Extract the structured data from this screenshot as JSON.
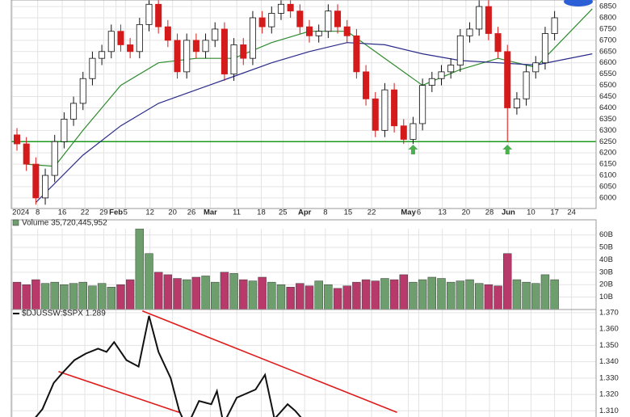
{
  "chart_data": [
    {
      "type": "candlestick",
      "xlim": [
        -0.6,
        61.4
      ],
      "ylim": [
        5953,
        6879
      ],
      "yticks": [
        6000,
        6050,
        6100,
        6150,
        6200,
        6250,
        6300,
        6350,
        6400,
        6450,
        6500,
        6550,
        6600,
        6650,
        6700,
        6750,
        6800,
        6850
      ],
      "xticks": [
        {
          "value": -0.5,
          "label": "2024"
        },
        {
          "value": 2.2,
          "label": "8"
        },
        {
          "value": 4.8,
          "label": "16"
        },
        {
          "value": 7.2,
          "label": "22"
        },
        {
          "value": 9.2,
          "label": "29"
        },
        {
          "value": 10.5,
          "label": "Feb"
        },
        {
          "value": 11.5,
          "label": "5"
        },
        {
          "value": 14.1,
          "label": "12"
        },
        {
          "value": 16.5,
          "label": "20"
        },
        {
          "value": 18.5,
          "label": "26"
        },
        {
          "value": 20.5,
          "label": "Mar"
        },
        {
          "value": 23.3,
          "label": "11"
        },
        {
          "value": 25.9,
          "label": "18"
        },
        {
          "value": 28.2,
          "label": "25"
        },
        {
          "value": 30.5,
          "label": "Apr"
        },
        {
          "value": 32.7,
          "label": "8"
        },
        {
          "value": 35.1,
          "label": "15"
        },
        {
          "value": 37.6,
          "label": "22"
        },
        {
          "value": 41.5,
          "label": "May"
        },
        {
          "value": 42.6,
          "label": "6"
        },
        {
          "value": 45.1,
          "label": "13"
        },
        {
          "value": 47.6,
          "label": "20"
        },
        {
          "value": 50.1,
          "label": "28"
        },
        {
          "value": 52.1,
          "label": "Jun"
        },
        {
          "value": 54.5,
          "label": "10"
        },
        {
          "value": 57.0,
          "label": "17"
        },
        {
          "value": 58.8,
          "label": "24"
        }
      ],
      "grid": true,
      "up_color": "#ffffff",
      "down_color": "#d41a1a",
      "open": [
        6280,
        6240,
        6150,
        6000,
        6100,
        6250,
        6350,
        6420,
        6530,
        6620,
        6650,
        6740,
        6680,
        6650,
        6770,
        6860,
        6760,
        6700,
        6560,
        6700,
        6650,
        6700,
        6750,
        6550,
        6680,
        6620,
        6800,
        6760,
        6820,
        6860,
        6830,
        6760,
        6720,
        6740,
        6830,
        6760,
        6720,
        6560,
        6440,
        6300,
        6480,
        6320,
        6260,
        6330,
        6500,
        6530,
        6560,
        6590,
        6720,
        6750,
        6850,
        6730,
        6650,
        6400,
        6440,
        6560,
        6600,
        6730
      ],
      "high": [
        6310,
        6270,
        6180,
        6130,
        6280,
        6380,
        6450,
        6560,
        6650,
        6680,
        6770,
        6770,
        6710,
        6800,
        6890,
        6890,
        6790,
        6730,
        6730,
        6730,
        6730,
        6780,
        6780,
        6710,
        6710,
        6830,
        6830,
        6850,
        6890,
        6890,
        6860,
        6790,
        6770,
        6860,
        6860,
        6790,
        6750,
        6590,
        6470,
        6510,
        6510,
        6350,
        6360,
        6530,
        6560,
        6590,
        6620,
        6750,
        6780,
        6880,
        6880,
        6760,
        6680,
        6470,
        6590,
        6630,
        6760,
        6830
      ],
      "low": [
        6210,
        6120,
        5970,
        5970,
        6070,
        6220,
        6320,
        6390,
        6500,
        6590,
        6620,
        6650,
        6620,
        6620,
        6740,
        6730,
        6670,
        6530,
        6530,
        6620,
        6620,
        6670,
        6520,
        6520,
        6590,
        6590,
        6730,
        6730,
        6790,
        6800,
        6730,
        6690,
        6690,
        6710,
        6730,
        6690,
        6530,
        6410,
        6270,
        6270,
        6290,
        6240,
        6240,
        6300,
        6470,
        6500,
        6530,
        6560,
        6690,
        6720,
        6700,
        6620,
        6250,
        6370,
        6410,
        6530,
        6570,
        6700
      ],
      "close": [
        6240,
        6150,
        6000,
        6100,
        6250,
        6350,
        6420,
        6530,
        6620,
        6650,
        6740,
        6680,
        6650,
        6770,
        6860,
        6760,
        6700,
        6560,
        6700,
        6650,
        6700,
        6750,
        6550,
        6680,
        6620,
        6800,
        6760,
        6820,
        6860,
        6830,
        6760,
        6720,
        6740,
        6830,
        6760,
        6720,
        6560,
        6440,
        6300,
        6480,
        6320,
        6260,
        6330,
        6500,
        6530,
        6560,
        6590,
        6720,
        6750,
        6850,
        6730,
        6650,
        6400,
        6440,
        6560,
        6600,
        6730,
        6800
      ],
      "series": [
        {
          "color": "#2e8b2e",
          "x": [
            1,
            4,
            7,
            11,
            15,
            19,
            23,
            27,
            31,
            35,
            39,
            43,
            47,
            51,
            55,
            61
          ],
          "values": [
            6150,
            6140,
            6300,
            6500,
            6600,
            6620,
            6620,
            6690,
            6740,
            6740,
            6620,
            6500,
            6570,
            6620,
            6580,
            6840
          ]
        },
        {
          "color": "#2a2a8a",
          "x": [
            2,
            7,
            11,
            15,
            19,
            23,
            27,
            31,
            35,
            39,
            43,
            47,
            51,
            55,
            61
          ],
          "values": [
            5980,
            6190,
            6320,
            6420,
            6480,
            6540,
            6600,
            6650,
            6690,
            6680,
            6640,
            6610,
            6600,
            6590,
            6640
          ]
        }
      ],
      "hlines": [
        {
          "value": 6250,
          "color": "#1e9a1e"
        }
      ],
      "markers": [
        {
          "x": 42,
          "y": 6215,
          "color": "#4caf50"
        },
        {
          "x": 52,
          "y": 6215,
          "color": "#4caf50"
        }
      ]
    },
    {
      "type": "bar",
      "title": "Volume 35,720,445,952",
      "xlim": [
        -0.6,
        61.4
      ],
      "ylim": [
        0,
        65
      ],
      "yticks": [
        {
          "value": 10,
          "label": "10B"
        },
        {
          "value": 20,
          "label": "20B"
        },
        {
          "value": 30,
          "label": "30B"
        },
        {
          "value": 40,
          "label": "40B"
        },
        {
          "value": 50,
          "label": "50B"
        },
        {
          "value": 60,
          "label": "60B"
        }
      ],
      "grid": true,
      "up_color": "#6e9e6e",
      "down_color": "#b83a6a",
      "values": [
        22,
        20,
        24,
        21,
        22,
        20,
        21,
        22,
        19,
        21,
        18,
        20,
        24,
        65,
        45,
        30,
        28,
        25,
        24,
        26,
        27,
        22,
        30,
        29,
        24,
        23,
        26,
        22,
        20,
        18,
        21,
        19,
        23,
        20,
        17,
        19,
        22,
        24,
        23,
        25,
        24,
        28,
        22,
        24,
        26,
        25,
        22,
        23,
        24,
        21,
        20,
        19,
        45,
        24,
        22,
        21,
        28,
        24
      ]
    },
    {
      "type": "line",
      "title": "$DJUSSW:$SPX 1.289",
      "xlim": [
        -0.6,
        61.4
      ],
      "ylim": [
        1.3062,
        1.3719
      ],
      "yticks": [
        {
          "value": 1.31,
          "label": "1.310"
        },
        {
          "value": 1.32,
          "label": "1.320"
        },
        {
          "value": 1.33,
          "label": "1.330"
        },
        {
          "value": 1.34,
          "label": "1.340"
        },
        {
          "value": 1.35,
          "label": "1.350"
        },
        {
          "value": 1.36,
          "label": "1.360"
        },
        {
          "value": 1.37,
          "label": "1.370"
        }
      ],
      "grid": true,
      "color": "#111111",
      "x": [
        1.4,
        2.7,
        3.9,
        4.8,
        6.1,
        7.3,
        8.6,
        9.5,
        10.3,
        11.6,
        12.9,
        14.0,
        15.0,
        16.3,
        17.2,
        18.0,
        19.3,
        20.6,
        21.2,
        21.9,
        23.3,
        25.3,
        26.3,
        27.3,
        28.7,
        29.5,
        30.7
      ],
      "values": [
        1.302,
        1.311,
        1.327,
        1.333,
        1.341,
        1.345,
        1.348,
        1.346,
        1.352,
        1.341,
        1.337,
        1.368,
        1.346,
        1.33,
        1.31,
        1.3,
        1.316,
        1.314,
        1.322,
        1.302,
        1.318,
        1.323,
        1.332,
        1.305,
        1.314,
        1.31,
        1.302
      ],
      "trendlines": [
        {
          "x": [
            13.3,
            40.3
          ],
          "values": [
            1.371,
            1.309
          ],
          "color": "#e01b1b"
        },
        {
          "x": [
            4.4,
            17.2
          ],
          "values": [
            1.334,
            1.309
          ],
          "color": "#e01b1b"
        }
      ]
    }
  ]
}
